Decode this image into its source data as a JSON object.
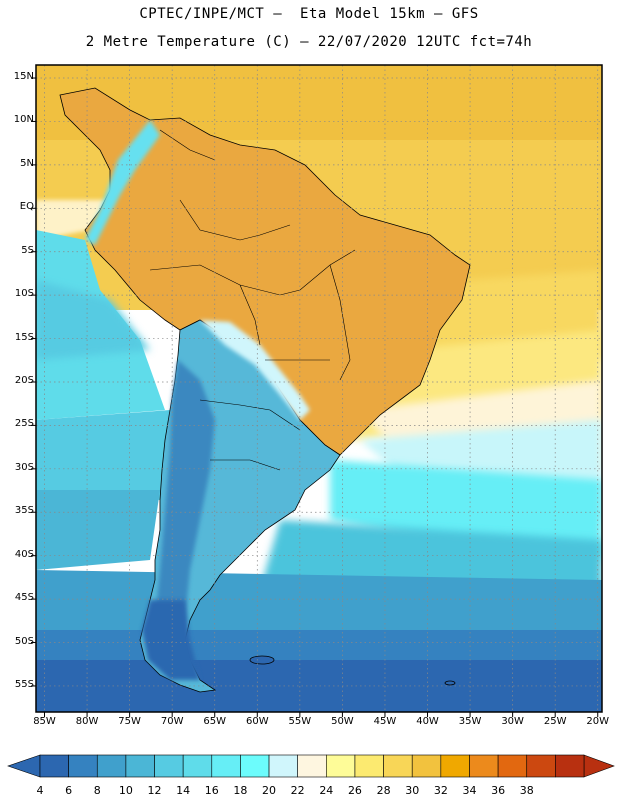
{
  "title": {
    "line1": "CPTEC/INPE/MCT –  Eta Model 15km – GFS",
    "line2": "2 Metre Temperature (C) – 22/07/2020 12UTC fct=74h"
  },
  "axes": {
    "lat_labels": [
      "15N",
      "10N",
      "5N",
      "EQ",
      "5S",
      "10S",
      "15S",
      "20S",
      "25S",
      "30S",
      "35S",
      "40S",
      "45S",
      "50S",
      "55S"
    ],
    "lon_labels": [
      "85W",
      "80W",
      "75W",
      "70W",
      "65W",
      "60W",
      "55W",
      "50W",
      "45W",
      "40W",
      "35W",
      "30W",
      "25W",
      "20W"
    ],
    "lat_values": [
      15,
      10,
      5,
      0,
      -5,
      -10,
      -15,
      -20,
      -25,
      -30,
      -35,
      -40,
      -45,
      -50,
      -55
    ],
    "lon_values": [
      -85,
      -80,
      -75,
      -70,
      -65,
      -60,
      -55,
      -50,
      -45,
      -40,
      -35,
      -30,
      -25,
      -20
    ],
    "lat_range": [
      -58,
      16.5
    ],
    "lon_range": [
      -86,
      -19.5
    ],
    "grid": true
  },
  "colorbar": {
    "labels": [
      "4",
      "6",
      "8",
      "10",
      "12",
      "14",
      "16",
      "18",
      "20",
      "22",
      "24",
      "26",
      "28",
      "30",
      "32",
      "34",
      "36",
      "38"
    ],
    "colors": [
      "#2c67b0",
      "#3582c0",
      "#40a0cc",
      "#4bb6d6",
      "#56cbe2",
      "#5fdcea",
      "#66eef6",
      "#6cfcfc",
      "#d0f6fc",
      "#fef6e0",
      "#fefc98",
      "#fcea70",
      "#f8d657",
      "#f2c23e",
      "#f0a800",
      "#ec8a1c",
      "#e26810",
      "#cc4810",
      "#b83010"
    ]
  },
  "map": {
    "ocean_north": "#ecc24c",
    "land_warm": "#eaa840",
    "land_cold": "#4a92c0",
    "border_color": "#000000"
  }
}
